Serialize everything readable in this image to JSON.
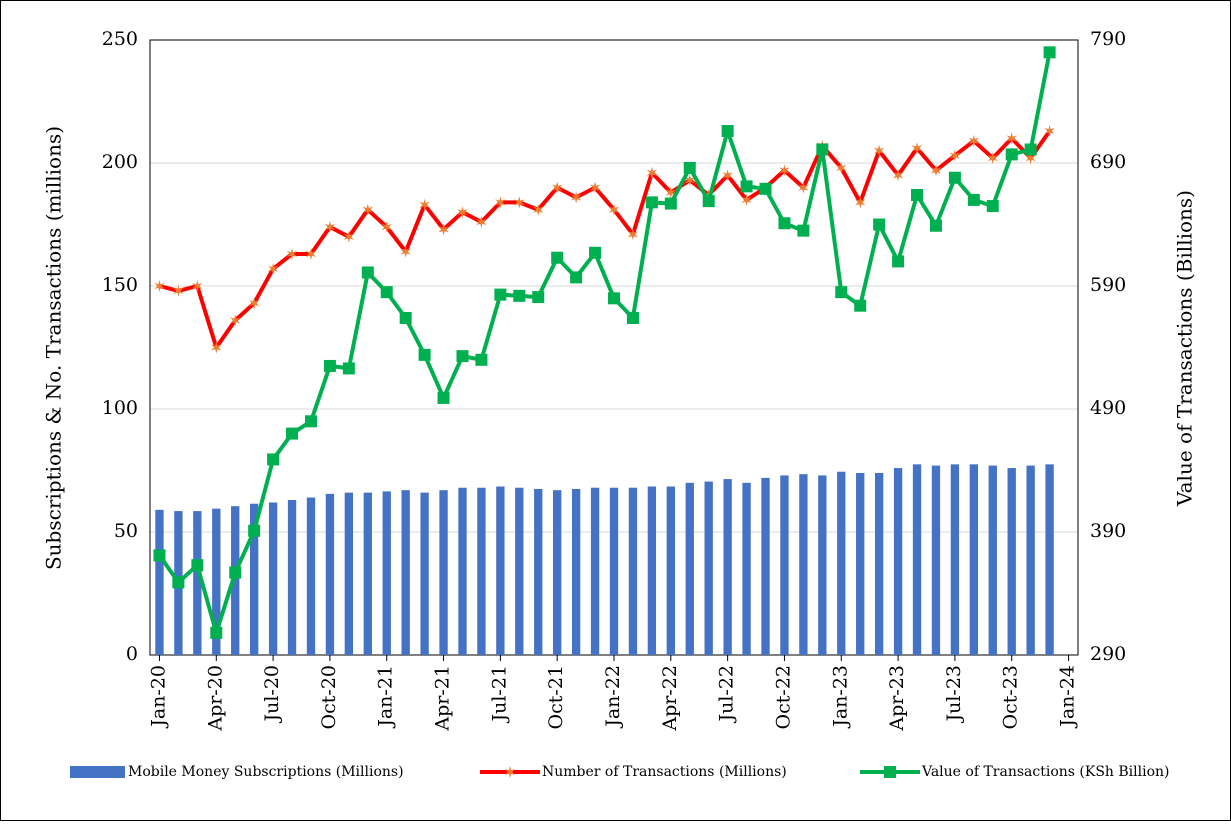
{
  "chart_data": {
    "type": "bar-line",
    "y_label": "Subscriptions & No. Transactions (millions)",
    "y2_label": "Value of Transactions (Billions)",
    "categories": [
      "Jan-20",
      null,
      null,
      "Apr-20",
      null,
      null,
      "Jul-20",
      null,
      null,
      "Oct-20",
      null,
      null,
      "Jan-21",
      null,
      null,
      "Apr-21",
      null,
      null,
      "Jul-21",
      null,
      null,
      "Oct-21",
      null,
      null,
      "Jan-22",
      null,
      null,
      "Apr-22",
      null,
      null,
      "Jul-22",
      null,
      null,
      "Oct-22",
      null,
      null,
      "Jan-23",
      null,
      null,
      "Apr-23",
      null,
      null,
      "Jul-23",
      null,
      null,
      "Oct-23",
      null,
      null,
      "Jan-24"
    ],
    "series": [
      {
        "name": "Mobile Money Subscriptions (Millions)",
        "type": "bar",
        "color": "#4472c4",
        "values": [
          59,
          58.5,
          58.5,
          59.5,
          60.5,
          61.5,
          62,
          63,
          64,
          65.5,
          66,
          66,
          66.5,
          67,
          66,
          67,
          68,
          68,
          68.5,
          68,
          67.5,
          67,
          67.5,
          68,
          68,
          68,
          68.5,
          68.5,
          70,
          70.5,
          71.5,
          70,
          72,
          73,
          73.5,
          73,
          74.5,
          74,
          74,
          76,
          77.5,
          77,
          77.5,
          77.5,
          77,
          76,
          77,
          77.5,
          null
        ]
      },
      {
        "name": "Number of Transactions (Millions)",
        "type": "line",
        "color": "#ff0000",
        "marker_color": "#ed7d31",
        "marker": "star",
        "values": [
          150,
          148,
          150,
          125,
          136,
          143,
          157,
          163,
          163,
          174,
          170,
          181,
          174,
          164,
          183,
          173,
          180,
          176,
          184,
          184,
          181,
          190,
          186,
          190,
          181,
          171,
          196,
          188,
          193,
          187,
          195,
          185,
          190,
          197,
          190,
          207,
          198,
          184,
          205,
          195,
          206,
          197,
          203,
          209,
          202,
          210,
          202,
          213,
          null
        ]
      },
      {
        "name": "Value of Transactions (KSh Billion)",
        "type": "line",
        "axis": "y2",
        "color": "#00b050",
        "marker_color": "#00b050",
        "marker": "square",
        "values": [
          371,
          349,
          363,
          308,
          357,
          391,
          449,
          470,
          480,
          525,
          523,
          601,
          585,
          564,
          534,
          499,
          533,
          530,
          583,
          582,
          581,
          613,
          597,
          617,
          580,
          564,
          658,
          657,
          686,
          659,
          716,
          671,
          669,
          641,
          635,
          701,
          585,
          574,
          640,
          610,
          664,
          639,
          678,
          660,
          655,
          697,
          701,
          780,
          null
        ]
      }
    ],
    "ylim": [
      0,
      250
    ],
    "yticks": [
      0,
      50,
      100,
      150,
      200,
      250
    ],
    "y2lim": [
      290,
      790
    ],
    "y2ticks": [
      290,
      390,
      490,
      590,
      690,
      790
    ],
    "grid": true,
    "legend": "bottom"
  }
}
